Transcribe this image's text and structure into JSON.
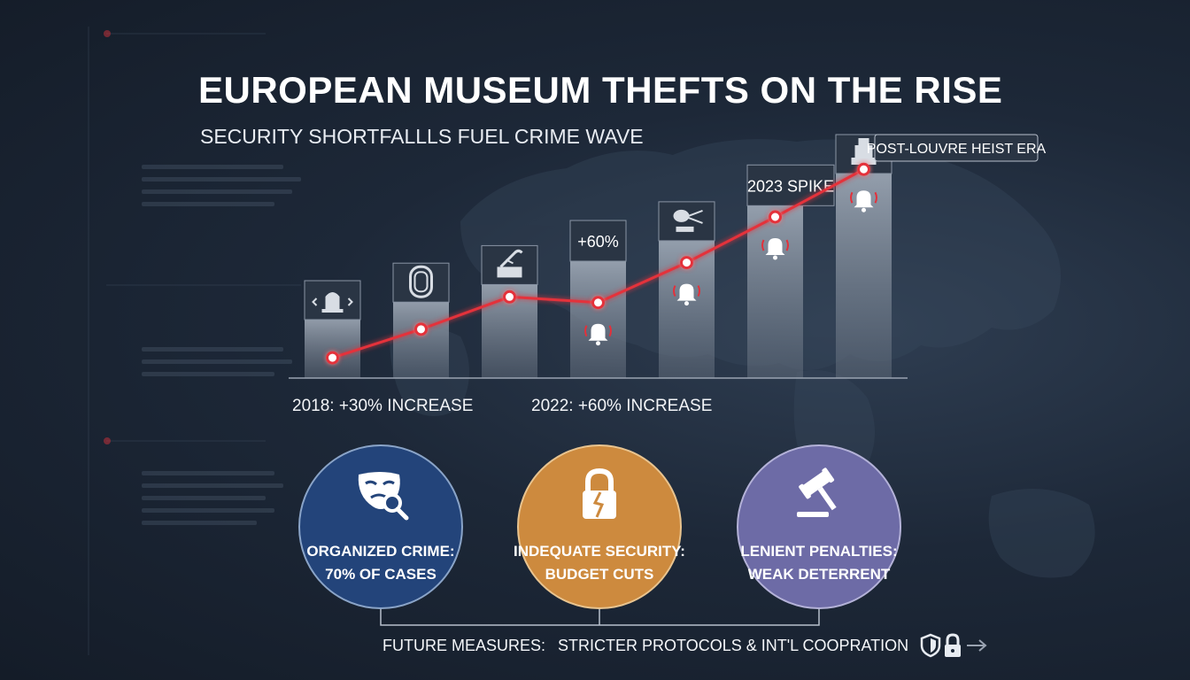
{
  "header": {
    "title": "EUROPEAN MUSEUM THEFTS ON THE RISE",
    "subtitle": "SECURITY SHORTFALLLS FUEL CRIME WAVE"
  },
  "chart_data": {
    "type": "bar",
    "categories": [
      "",
      "",
      "",
      "",
      "",
      "",
      ""
    ],
    "values": [
      20,
      26,
      32,
      40,
      47,
      59,
      70
    ],
    "line": [
      6,
      21,
      38,
      35,
      56,
      80,
      105
    ],
    "annotations": [
      "",
      "",
      "",
      "+60%",
      "",
      "2023 SPIKE",
      "POST-LOUVRE HEIST ERA"
    ],
    "bar_icons": [
      "alarm-siren",
      "vault-door",
      "crowbar-tool",
      "",
      "drill-tool",
      "",
      "statue"
    ],
    "alert_bells": [
      false,
      false,
      false,
      true,
      true,
      true,
      true
    ],
    "colors": {
      "bar": "#8a95a5",
      "line": "#e4303a",
      "marker_fill": "#ffffff",
      "axis": "#9aa3b1"
    }
  },
  "captions": {
    "left": "2018: +30% INCREASE",
    "right": "2022: +60% INCREASE"
  },
  "factors": [
    {
      "icon": "mask-magnifier-icon",
      "line1": "ORGANIZED CRIME:",
      "line2": "70% OF CASES",
      "color": "#23447a"
    },
    {
      "icon": "broken-padlock-icon",
      "line1": "INDEQUATE SECURITY:",
      "line2": "BUDGET CUTS",
      "color": "#cd8a3e"
    },
    {
      "icon": "gavel-icon",
      "line1": "LENIENT PENALTIES:",
      "line2": "WEAK DETERRENT",
      "color": "#6d6ba6"
    }
  ],
  "footer": {
    "label": "FUTURE MEASURES:",
    "text": "STRICTER PROTOCOLS & INT'L COOPRATION",
    "icons": [
      "shield-icon",
      "padlock-icon",
      "arrow-right-icon"
    ]
  }
}
